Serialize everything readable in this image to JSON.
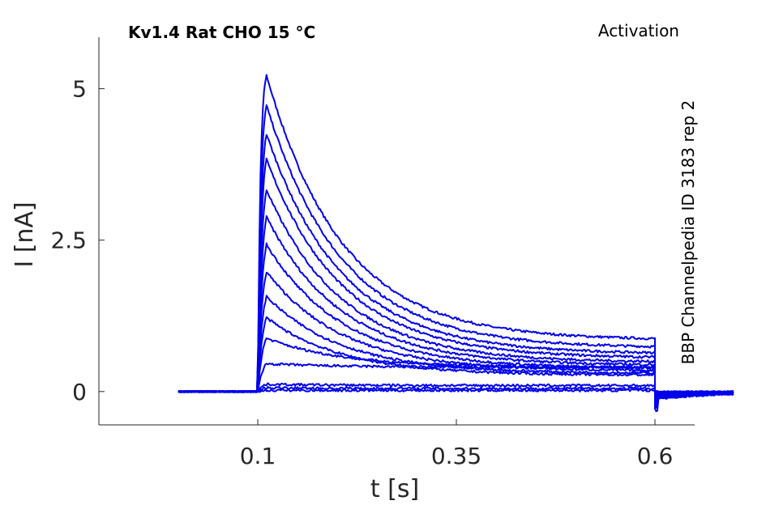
{
  "chart_data": {
    "type": "line",
    "title": "Kv1.4  Rat  CHO  15 °C",
    "protocol": "Activation",
    "source": "BBP Channelpedia ID 3183 rep 2",
    "xlabel": "t [s]",
    "ylabel": "I [nA]",
    "xlim": [
      -0.1,
      0.65
    ],
    "ylim": [
      -0.55,
      5.85
    ],
    "x_ticks": [
      0.1,
      0.35,
      0.6
    ],
    "x_tick_labels": [
      "0.1",
      "0.35",
      "0.6"
    ],
    "y_ticks": [
      0,
      2.5,
      5
    ],
    "y_tick_labels": [
      "0",
      "2.5",
      "5"
    ],
    "grid": false,
    "legend": "none",
    "line_color": "#0000ee",
    "step_start_s": 0.1,
    "step_end_s": 0.6,
    "x_range_recorded": [
      0.0,
      0.7
    ],
    "series": [
      {
        "peak": 5.22,
        "steady": 0.85,
        "tail": -0.13
      },
      {
        "peak": 4.72,
        "steady": 0.72,
        "tail": -0.11
      },
      {
        "peak": 4.25,
        "steady": 0.62,
        "tail": -0.1
      },
      {
        "peak": 3.83,
        "steady": 0.55,
        "tail": -0.09
      },
      {
        "peak": 3.33,
        "steady": 0.48,
        "tail": -0.08
      },
      {
        "peak": 2.88,
        "steady": 0.43,
        "tail": -0.07
      },
      {
        "peak": 2.43,
        "steady": 0.38,
        "tail": -0.06
      },
      {
        "peak": 1.98,
        "steady": 0.34,
        "tail": -0.05
      },
      {
        "peak": 1.57,
        "steady": 0.3,
        "tail": -0.04
      },
      {
        "peak": 1.22,
        "steady": 0.27,
        "tail": -0.03
      },
      {
        "peak": 0.88,
        "steady": 0.4,
        "tail": -0.03
      },
      {
        "peak": 0.46,
        "steady": 0.4,
        "tail": -0.02
      },
      {
        "peak": 0.12,
        "steady": 0.1,
        "tail": -0.01
      },
      {
        "peak": 0.06,
        "steady": 0.05,
        "tail": 0.0
      },
      {
        "peak": 0.02,
        "steady": 0.02,
        "tail": 0.0
      }
    ]
  }
}
